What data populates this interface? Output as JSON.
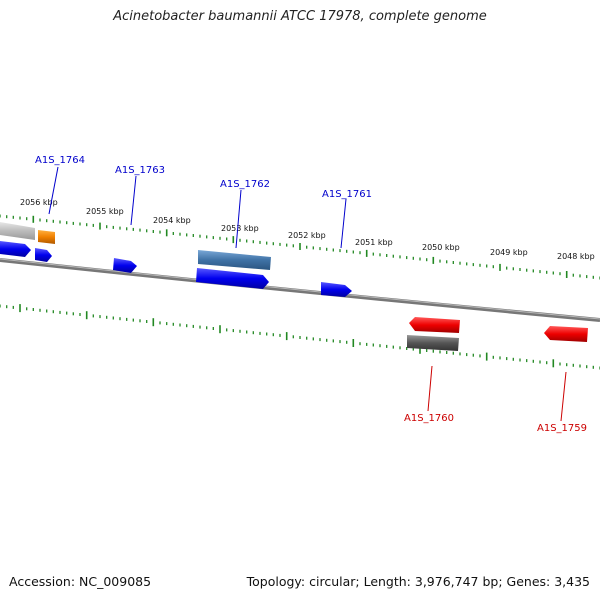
{
  "title": "Acinetobacter baumannii ATCC 17978, complete genome",
  "footer": {
    "accession": "Accession: NC_009085",
    "summary": "Topology: circular; Length: 3,976,747 bp; Genes: 3,435"
  },
  "colors": {
    "forward_gene": "#0000ee",
    "reverse_gene": "#ee0000",
    "forward_label": "#0000cc",
    "reverse_label": "#cc0000",
    "tick": "#228822",
    "backbone": "#777777",
    "rna": "#f08000",
    "pseudo_light": "#bbbbbb",
    "pseudo_dark": "#555555",
    "cds_steel": "#4a7fb0"
  },
  "scale_labels": [
    "2056 kbp",
    "2055 kbp",
    "2054 kbp",
    "2053 kbp",
    "2052 kbp",
    "2051 kbp",
    "2050 kbp",
    "2049 kbp",
    "2048 kbp"
  ],
  "gene_labels": [
    {
      "id": "A1S_1764",
      "strand": "forward"
    },
    {
      "id": "A1S_1763",
      "strand": "forward"
    },
    {
      "id": "A1S_1762",
      "strand": "forward"
    },
    {
      "id": "A1S_1761",
      "strand": "forward"
    },
    {
      "id": "A1S_1760",
      "strand": "reverse"
    },
    {
      "id": "A1S_1759",
      "strand": "reverse"
    }
  ]
}
